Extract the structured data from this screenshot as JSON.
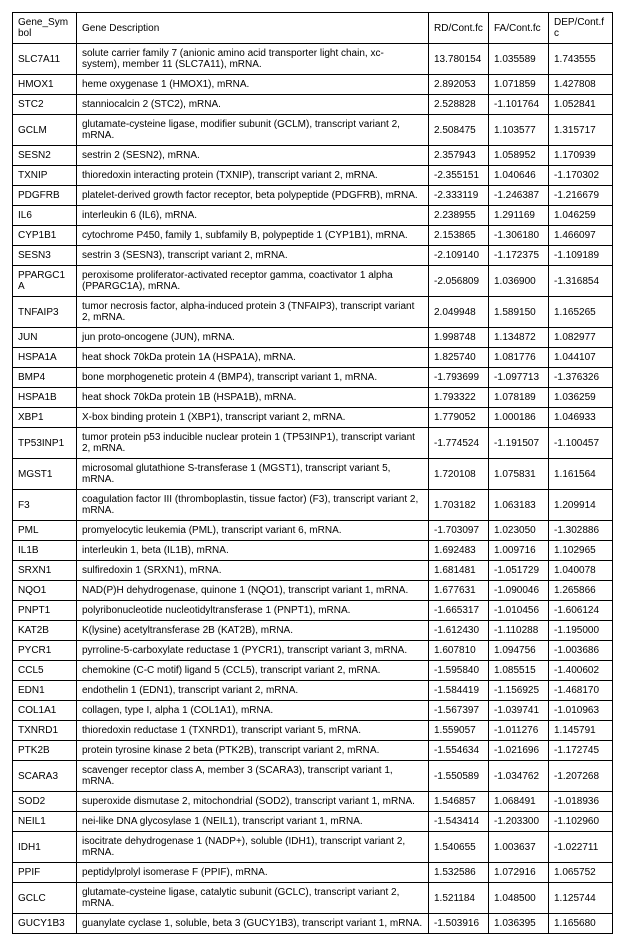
{
  "table": {
    "columns": [
      "Gene_Symbol",
      "Gene Description",
      "RD/Cont.fc",
      "FA/Cont.fc",
      "DEP/Cont.fc"
    ],
    "rows": [
      [
        "SLC7A11",
        "solute carrier family 7 (anionic amino acid transporter light chain, xc- system), member 11 (SLC7A11), mRNA.",
        "13.780154",
        "1.035589",
        "1.743555"
      ],
      [
        "HMOX1",
        "heme oxygenase 1 (HMOX1), mRNA.",
        "2.892053",
        "1.071859",
        "1.427808"
      ],
      [
        "STC2",
        "stanniocalcin 2 (STC2), mRNA.",
        "2.528828",
        "-1.101764",
        "1.052841"
      ],
      [
        "GCLM",
        "glutamate-cysteine ligase, modifier subunit (GCLM), transcript variant 2, mRNA.",
        "2.508475",
        "1.103577",
        "1.315717"
      ],
      [
        "SESN2",
        "sestrin 2 (SESN2), mRNA.",
        "2.357943",
        "1.058952",
        "1.170939"
      ],
      [
        "TXNIP",
        "thioredoxin interacting protein (TXNIP), transcript variant 2, mRNA.",
        "-2.355151",
        "1.040646",
        "-1.170302"
      ],
      [
        "PDGFRB",
        "platelet-derived growth factor receptor, beta polypeptide (PDGFRB), mRNA.",
        "-2.333119",
        "-1.246387",
        "-1.216679"
      ],
      [
        "IL6",
        "interleukin 6 (IL6), mRNA.",
        "2.238955",
        "1.291169",
        "1.046259"
      ],
      [
        "CYP1B1",
        "cytochrome P450, family 1, subfamily B, polypeptide 1 (CYP1B1), mRNA.",
        "2.153865",
        "-1.306180",
        "1.466097"
      ],
      [
        "SESN3",
        "sestrin 3 (SESN3), transcript variant 2, mRNA.",
        "-2.109140",
        "-1.172375",
        "-1.109189"
      ],
      [
        "PPARGC1A",
        "peroxisome proliferator-activated receptor gamma, coactivator 1 alpha (PPARGC1A), mRNA.",
        "-2.056809",
        "1.036900",
        "-1.316854"
      ],
      [
        "TNFAIP3",
        "tumor necrosis factor, alpha-induced protein 3 (TNFAIP3), transcript variant 2, mRNA.",
        "2.049948",
        "1.589150",
        "1.165265"
      ],
      [
        "JUN",
        "jun proto-oncogene (JUN), mRNA.",
        "1.998748",
        "1.134872",
        "1.082977"
      ],
      [
        "HSPA1A",
        "heat shock 70kDa protein 1A (HSPA1A), mRNA.",
        "1.825740",
        "1.081776",
        "1.044107"
      ],
      [
        "BMP4",
        "bone morphogenetic protein 4 (BMP4), transcript variant 1, mRNA.",
        "-1.793699",
        "-1.097713",
        "-1.376326"
      ],
      [
        "HSPA1B",
        "heat shock 70kDa protein 1B (HSPA1B), mRNA.",
        "1.793322",
        "1.078189",
        "1.036259"
      ],
      [
        "XBP1",
        "X-box binding protein 1 (XBP1), transcript variant 2, mRNA.",
        "1.779052",
        "1.000186",
        "1.046933"
      ],
      [
        "TP53INP1",
        "tumor protein p53 inducible nuclear protein 1 (TP53INP1), transcript variant 2, mRNA.",
        "-1.774524",
        "-1.191507",
        "-1.100457"
      ],
      [
        "MGST1",
        "microsomal glutathione S-transferase 1 (MGST1), transcript variant 5, mRNA.",
        "1.720108",
        "1.075831",
        "1.161564"
      ],
      [
        "F3",
        "coagulation factor III (thromboplastin, tissue factor) (F3), transcript variant 2, mRNA.",
        "1.703182",
        "1.063183",
        "1.209914"
      ],
      [
        "PML",
        "promyelocytic leukemia (PML), transcript variant 6, mRNA.",
        "-1.703097",
        "1.023050",
        "-1.302886"
      ],
      [
        "IL1B",
        "interleukin 1, beta (IL1B), mRNA.",
        "1.692483",
        "1.009716",
        "1.102965"
      ],
      [
        "SRXN1",
        "sulfiredoxin 1 (SRXN1), mRNA.",
        "1.681481",
        "-1.051729",
        "1.040078"
      ],
      [
        "NQO1",
        "NAD(P)H dehydrogenase, quinone 1 (NQO1), transcript variant 1, mRNA.",
        "1.677631",
        "-1.090046",
        "1.265866"
      ],
      [
        "PNPT1",
        "polyribonucleotide nucleotidyltransferase 1 (PNPT1), mRNA.",
        "-1.665317",
        "-1.010456",
        "-1.606124"
      ],
      [
        "KAT2B",
        "K(lysine) acetyltransferase 2B (KAT2B), mRNA.",
        "-1.612430",
        "-1.110288",
        "-1.195000"
      ],
      [
        "PYCR1",
        "pyrroline-5-carboxylate reductase 1 (PYCR1), transcript variant 3, mRNA.",
        "1.607810",
        "1.094756",
        "-1.003686"
      ],
      [
        "CCL5",
        "chemokine (C-C motif) ligand 5 (CCL5), transcript variant 2, mRNA.",
        "-1.595840",
        "1.085515",
        "-1.400602"
      ],
      [
        "EDN1",
        "endothelin 1 (EDN1), transcript variant 2, mRNA.",
        "-1.584419",
        "-1.156925",
        "-1.468170"
      ],
      [
        "COL1A1",
        "collagen, type I, alpha 1 (COL1A1), mRNA.",
        "-1.567397",
        "-1.039741",
        "-1.010963"
      ],
      [
        "TXNRD1",
        "thioredoxin reductase 1 (TXNRD1), transcript variant 5, mRNA.",
        "1.559057",
        "-1.011276",
        "1.145791"
      ],
      [
        "PTK2B",
        "protein tyrosine kinase 2 beta (PTK2B), transcript variant 2, mRNA.",
        "-1.554634",
        "-1.021696",
        "-1.172745"
      ],
      [
        "SCARA3",
        "scavenger receptor class A, member 3 (SCARA3), transcript variant 1, mRNA.",
        "-1.550589",
        "-1.034762",
        "-1.207268"
      ],
      [
        "SOD2",
        "superoxide dismutase 2, mitochondrial (SOD2), transcript variant 1, mRNA.",
        "1.546857",
        "1.068491",
        "-1.018936"
      ],
      [
        "NEIL1",
        "nei-like DNA glycosylase 1 (NEIL1), transcript variant 1, mRNA.",
        "-1.543414",
        "-1.203300",
        "-1.102960"
      ],
      [
        "IDH1",
        "isocitrate dehydrogenase 1 (NADP+), soluble (IDH1), transcript variant 2, mRNA.",
        "1.540655",
        "1.003637",
        "-1.022711"
      ],
      [
        "PPIF",
        "peptidylprolyl isomerase F (PPIF), mRNA.",
        "1.532586",
        "1.072916",
        "1.065752"
      ],
      [
        "GCLC",
        "glutamate-cysteine ligase, catalytic subunit (GCLC), transcript variant 2, mRNA.",
        "1.521184",
        "1.048500",
        "1.125744"
      ],
      [
        "GUCY1B3",
        "guanylate cyclase 1, soluble, beta 3 (GUCY1B3), transcript variant 1, mRNA.",
        "-1.503916",
        "1.036395",
        "1.165680"
      ]
    ]
  }
}
